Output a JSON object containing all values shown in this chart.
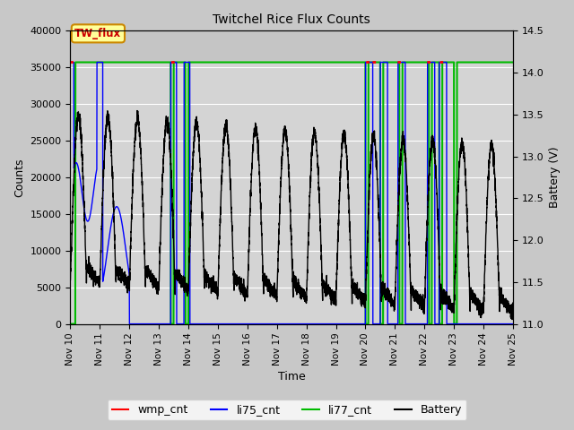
{
  "title": "Twitchel Rice Flux Counts",
  "xlabel": "Time",
  "ylabel_left": "Counts",
  "ylabel_right": "Battery (V)",
  "ylim_left": [
    0,
    40000
  ],
  "ylim_right": [
    11.0,
    14.5
  ],
  "x_ticks": [
    10,
    11,
    12,
    13,
    14,
    15,
    16,
    17,
    18,
    19,
    20,
    21,
    22,
    23,
    24,
    25
  ],
  "x_tick_labels": [
    "Nov 10",
    "Nov 11",
    "Nov 12",
    "Nov 13",
    "Nov 14",
    "Nov 15",
    "Nov 16",
    "Nov 17",
    "Nov 18",
    "Nov 19",
    "Nov 20",
    "Nov 21",
    "Nov 22",
    "Nov 23",
    "Nov 24",
    "Nov 25"
  ],
  "wmp_color": "#ff0000",
  "li75_color": "#0000ff",
  "li77_color": "#00bb00",
  "battery_color": "#000000",
  "fig_facecolor": "#c8c8c8",
  "ax_facecolor": "#d4d4d4",
  "annotation_box_facecolor": "#ffff99",
  "annotation_text": "TW_flux",
  "annotation_border_color": "#cc8800",
  "annotation_text_color": "#cc0000",
  "legend_labels": [
    "wmp_cnt",
    "li75_cnt",
    "li77_cnt",
    "Battery"
  ],
  "flat_level": 35700,
  "yticks_left": [
    0,
    5000,
    10000,
    15000,
    20000,
    25000,
    30000,
    35000,
    40000
  ],
  "yticks_right": [
    11.0,
    11.5,
    12.0,
    12.5,
    13.0,
    13.5,
    14.0,
    14.5
  ]
}
